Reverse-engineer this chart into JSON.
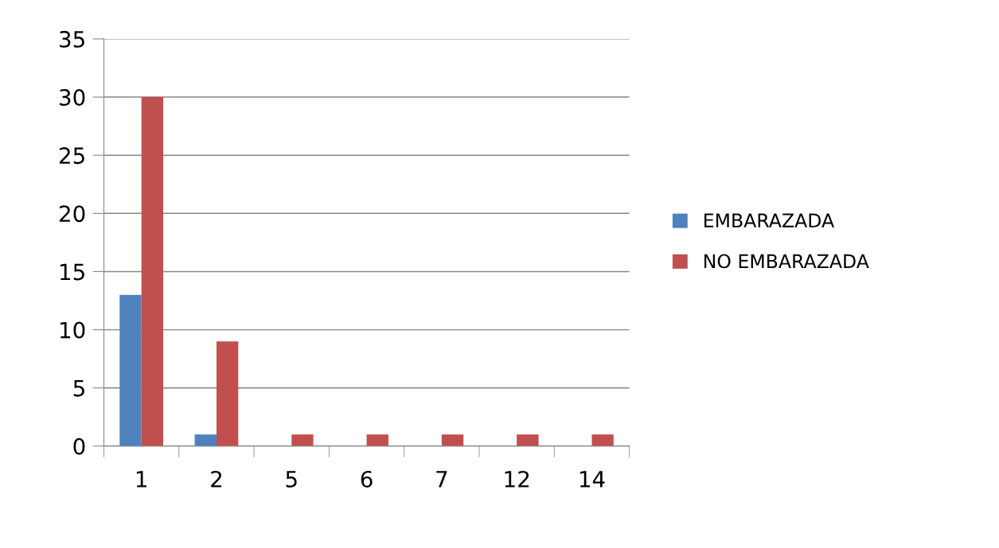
{
  "chart_data": {
    "type": "bar",
    "categories": [
      "1",
      "2",
      "5",
      "6",
      "7",
      "12",
      "14"
    ],
    "series": [
      {
        "name": "EMBARAZADA",
        "color": "#4f81bd",
        "values": [
          13,
          1,
          0,
          0,
          0,
          0,
          0
        ]
      },
      {
        "name": "NO EMBARAZADA",
        "color": "#c0504d",
        "values": [
          30,
          9,
          1,
          1,
          1,
          1,
          1
        ]
      }
    ],
    "ylim": [
      0,
      35
    ],
    "yticks": [
      0,
      5,
      10,
      15,
      20,
      25,
      30,
      35
    ],
    "grid": "y",
    "legend": "right"
  }
}
